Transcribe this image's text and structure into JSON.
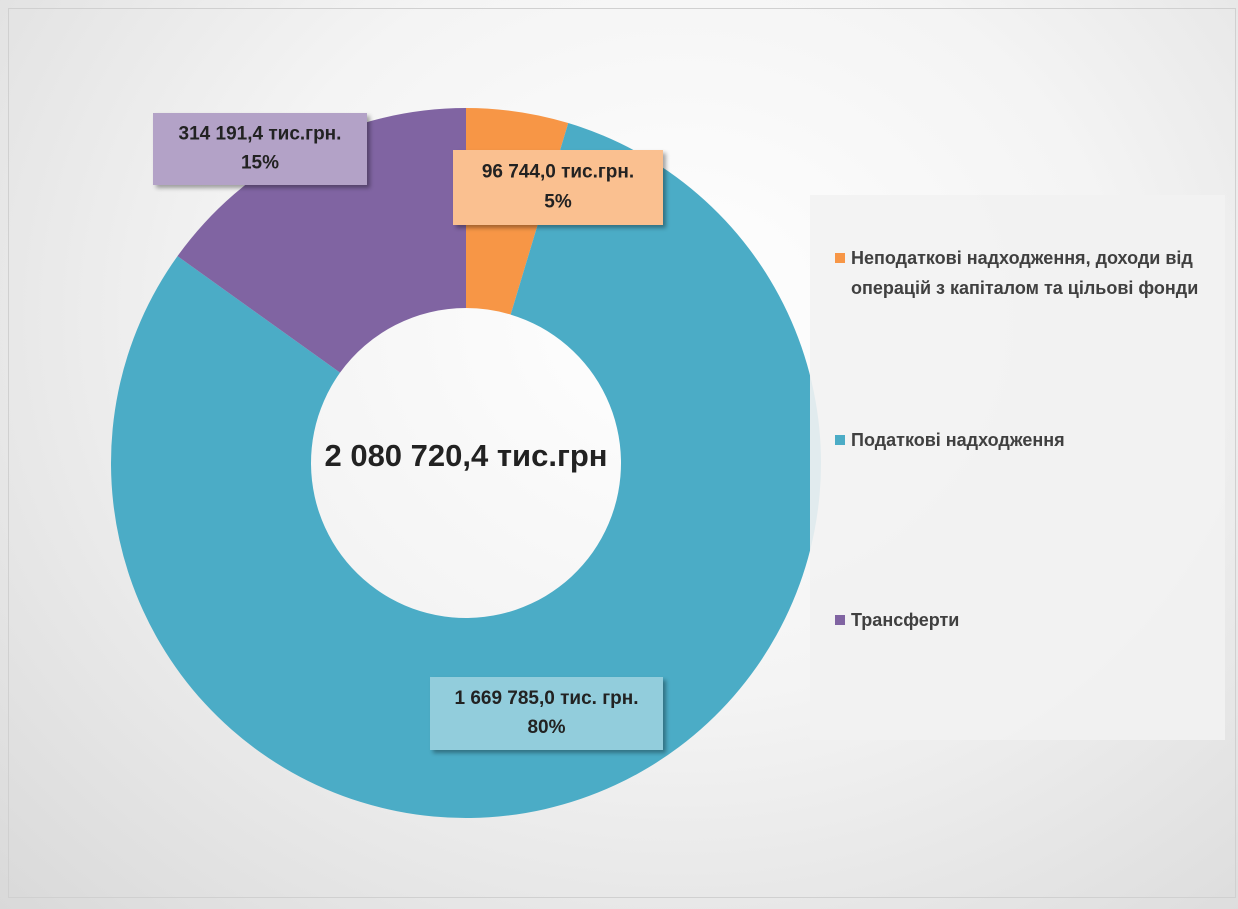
{
  "chart_data": {
    "type": "donut",
    "center_label": "2 080 720,4 тис.грн",
    "categories": [
      "Неподаткові надходження, доходи від операцій з капіталом та цільові фонди",
      "Податкові надходження",
      "Трансферти"
    ],
    "values": [
      96744.0,
      1669785.0,
      314191.4
    ],
    "value_labels": [
      "96 744,0 тис.грн.",
      "1 669 785,0 тис. грн.",
      "314 191,4 тис.грн."
    ],
    "percent_labels": [
      "5%",
      "80%",
      "15%"
    ],
    "colors": [
      "#f79646",
      "#4bacc6",
      "#8064a2"
    ],
    "label_colors": [
      "#fac090",
      "#92cddc",
      "#b3a2c7"
    ],
    "legend": "right"
  }
}
